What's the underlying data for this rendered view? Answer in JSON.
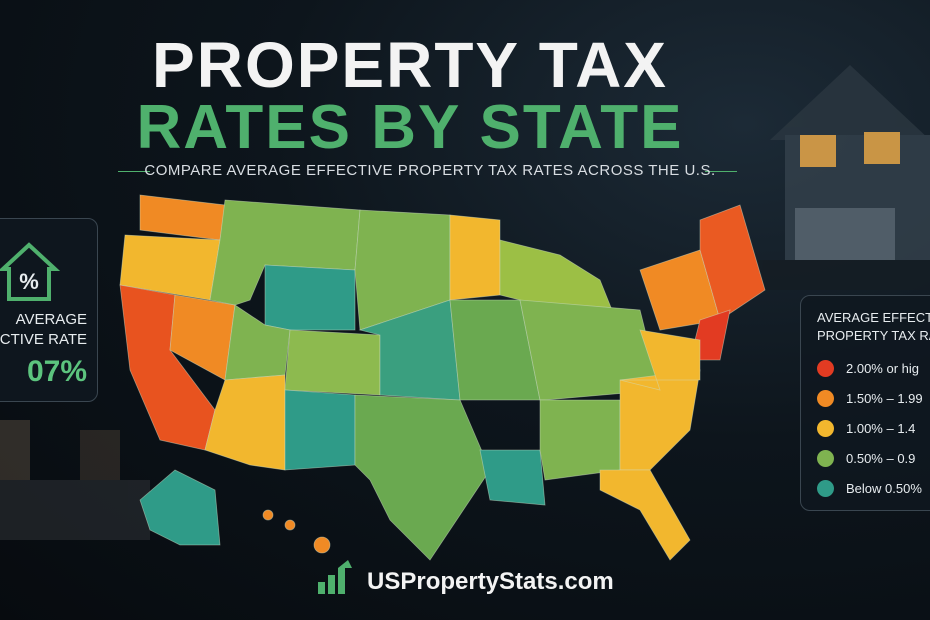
{
  "header": {
    "title_line1": "PROPERTY TAX",
    "title_line2": "RATES BY STATE",
    "subtitle": "COMPARE AVERAGE EFFECTIVE PROPERTY TAX RATES ACROSS THE U.S."
  },
  "left_card": {
    "label_line1": "AVERAGE",
    "label_line2": "CTIVE RATE",
    "value": "07%"
  },
  "legend": {
    "title_line1": "AVERAGE EFFECTIV",
    "title_line2": "PROPERTY TAX RA",
    "items": [
      {
        "label": "2.00% or hig",
        "color": "#e23b22"
      },
      {
        "label": "1.50% – 1.99",
        "color": "#f08a24"
      },
      {
        "label": "1.00% – 1.4",
        "color": "#f2b72e"
      },
      {
        "label": "0.50% – 0.9",
        "color": "#7fb350"
      },
      {
        "label": "Below 0.50%",
        "color": "#2f9b88"
      }
    ]
  },
  "footer": {
    "brand": "USPropertyStats.com"
  }
}
